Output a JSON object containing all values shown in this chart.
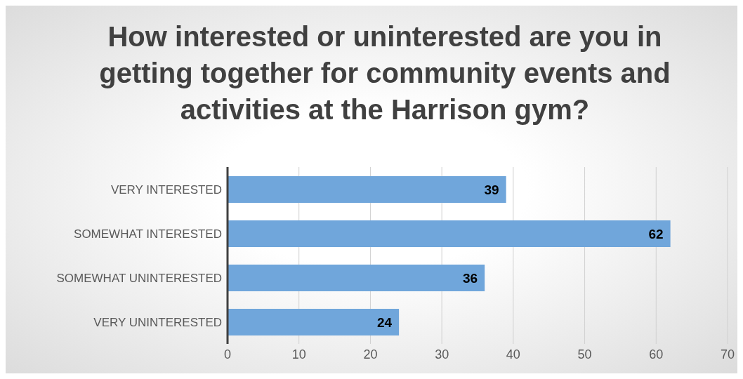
{
  "chart_data": {
    "type": "bar",
    "orientation": "horizontal",
    "title": "How interested or uninterested are you in getting together for community events and activities at the Harrison gym?",
    "categories": [
      "VERY INTERESTED",
      "SOMEWHAT INTERESTED",
      "SOMEWHAT UNINTERESTED",
      "VERY UNINTERESTED"
    ],
    "values": [
      39,
      62,
      36,
      24
    ],
    "color": "#70a6db",
    "xlim": [
      0,
      70
    ],
    "xticks": [
      0,
      10,
      20,
      30,
      40,
      50,
      60,
      70
    ],
    "grid": "x",
    "data_labels": true
  }
}
